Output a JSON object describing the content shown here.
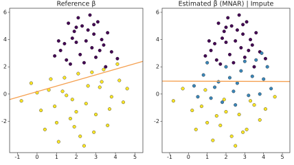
{
  "chart_data": [
    {
      "type": "scatter",
      "title": "Reference β",
      "xlim": [
        -1.4,
        5.4
      ],
      "ylim": [
        -4.3,
        6.3
      ],
      "xticks": [
        -1,
        0,
        1,
        2,
        3,
        4,
        5
      ],
      "yticks": [
        -2,
        0,
        2,
        4,
        6
      ],
      "series": [
        {
          "color": "#440154",
          "x": [
            1.2,
            1.8,
            2.3,
            2.9,
            3.4,
            1.5,
            2.0,
            2.6,
            3.1,
            3.8,
            0.9,
            1.6,
            2.2,
            2.8,
            3.3,
            4.1,
            1.9,
            2.5,
            3.0,
            1.4,
            2.1,
            2.7,
            3.6,
            1.1,
            2.4,
            3.2,
            1.7,
            2.9,
            2.0,
            3.5
          ],
          "values": [
            3.2,
            4.1,
            5.0,
            4.4,
            3.6,
            2.5,
            3.8,
            4.7,
            5.3,
            3.1,
            2.8,
            5.2,
            2.9,
            3.4,
            4.0,
            2.6,
            4.6,
            3.9,
            2.7,
            3.7,
            5.6,
            5.8,
            4.5,
            3.9,
            2.3,
            3.2,
            2.2,
            5.1,
            4.9,
            2.0
          ]
        },
        {
          "color": "#fde725",
          "x": [
            -0.8,
            -0.3,
            0.2,
            0.6,
            1.0,
            1.4,
            1.8,
            2.2,
            2.6,
            3.0,
            3.4,
            3.8,
            4.2,
            4.6,
            0.4,
            0.9,
            1.3,
            1.7,
            2.1,
            2.5,
            2.9,
            3.3,
            3.7,
            4.1,
            0.0,
            1.1,
            2.0,
            2.8,
            3.6,
            1.5,
            2.4,
            3.2,
            4.4,
            0.7,
            1.9
          ],
          "values": [
            -0.5,
            0.8,
            -1.2,
            0.3,
            -2.1,
            1.2,
            -0.4,
            -3.1,
            0.6,
            -1.5,
            1.8,
            -0.2,
            1.0,
            0.4,
            -2.6,
            -0.9,
            0.2,
            -1.8,
            1.5,
            -0.7,
            -2.8,
            0.9,
            -1.1,
            2.2,
            0.1,
            -3.5,
            -1.3,
            1.6,
            -2.3,
            -0.1,
            -3.8,
            0.5,
            -0.6,
            1.1,
            -2.4
          ]
        }
      ],
      "fit_line": {
        "color": "#f5a050",
        "x": [
          -1.4,
          5.4
        ],
        "values": [
          -0.4,
          2.4
        ]
      }
    },
    {
      "type": "scatter",
      "title": "Estimated β̂ (MNAR) | Impute",
      "xlim": [
        -1.4,
        5.4
      ],
      "ylim": [
        -4.3,
        6.3
      ],
      "xticks": [
        -1,
        0,
        1,
        2,
        3,
        4,
        5
      ],
      "yticks": [
        -2,
        0,
        2,
        4,
        6
      ],
      "series": [
        {
          "color": "#440154",
          "x": [
            1.2,
            1.8,
            2.3,
            2.9,
            3.4,
            1.5,
            2.0,
            2.6,
            3.1,
            3.8,
            0.9,
            1.6,
            2.2,
            2.8,
            3.3,
            4.1,
            1.9,
            2.5,
            3.0,
            1.4,
            2.1,
            2.7,
            3.6,
            1.1,
            2.4,
            3.2,
            1.7,
            2.9,
            2.0,
            3.5
          ],
          "values": [
            3.2,
            4.1,
            5.0,
            4.4,
            3.6,
            2.5,
            3.8,
            4.7,
            5.3,
            3.1,
            2.8,
            5.2,
            2.9,
            3.4,
            4.0,
            2.6,
            4.6,
            3.9,
            2.7,
            3.7,
            5.6,
            5.8,
            4.5,
            3.9,
            2.3,
            3.2,
            2.2,
            5.1,
            4.9,
            2.0
          ]
        },
        {
          "color": "#fde725",
          "x": [
            -0.8,
            -0.3,
            0.2,
            0.7,
            1.0,
            1.5,
            1.9,
            2.3,
            2.7,
            3.1,
            3.5,
            4.1,
            4.6,
            0.4,
            1.3,
            2.0,
            2.9,
            3.3,
            1.7,
            2.5,
            3.8,
            0.9
          ],
          "values": [
            -0.5,
            0.4,
            -1.2,
            -0.9,
            -2.1,
            -1.6,
            -0.4,
            -3.1,
            -1.5,
            -2.6,
            -0.8,
            -1.1,
            -0.2,
            -2.6,
            -3.4,
            -1.3,
            -2.8,
            -0.5,
            -2.3,
            -3.8,
            -1.9,
            0.3
          ]
        },
        {
          "color": "#3a86b8",
          "x": [
            0.3,
            0.8,
            1.2,
            1.6,
            2.0,
            2.4,
            2.8,
            3.2,
            3.6,
            4.0,
            4.4,
            1.0,
            1.8,
            2.6,
            3.4,
            4.2,
            0.5,
            1.4,
            2.2,
            3.0,
            3.8,
            2.5,
            3.9
          ],
          "values": [
            0.6,
            1.4,
            -0.3,
            0.9,
            2.0,
            0.2,
            1.7,
            -0.1,
            2.5,
            1.1,
            0.4,
            2.3,
            -0.6,
            0.8,
            1.3,
            2.0,
            -0.2,
            0.5,
            1.2,
            2.4,
            0.0,
            -0.8,
            3.0
          ]
        }
      ],
      "fit_line": {
        "color": "#f5a050",
        "x": [
          -1.4,
          5.4
        ],
        "values": [
          0.95,
          0.92
        ]
      }
    }
  ]
}
